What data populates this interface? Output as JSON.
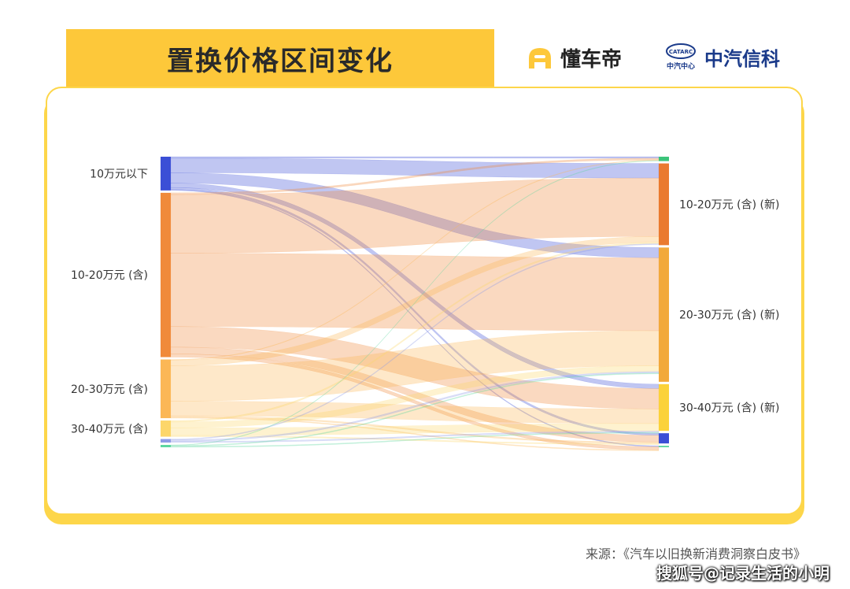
{
  "title": "置换价格区间变化",
  "logos": {
    "dongchedi": "懂车帝",
    "catarc": "中汽信科",
    "catarc_sub": "中汽中心",
    "catarc_badge": "CATARC"
  },
  "source": "来源：《汽车以旧换新消费洞察白皮书》",
  "watermark": "搜狐号@记录生活的小明",
  "chart_data": {
    "type": "sankey",
    "title": "置换价格区间变化",
    "left_nodes": [
      {
        "id": "L1",
        "label": "10万元以下",
        "color": "#3b4fd6",
        "value": 11.5
      },
      {
        "id": "L2",
        "label": "10-20万元 (含)",
        "color": "#f08a3a",
        "value": 56
      },
      {
        "id": "L3",
        "label": "20-30万元 (含)",
        "color": "#fbb756",
        "value": 20
      },
      {
        "id": "L4",
        "label": "30-40万元 (含)",
        "color": "#fcd66a",
        "value": 5.5
      },
      {
        "id": "L5",
        "label": "",
        "color": "#8e9be6",
        "value": 1.2
      },
      {
        "id": "L6",
        "label": "",
        "color": "#5cd6a0",
        "value": 0.8
      }
    ],
    "right_nodes": [
      {
        "id": "R0",
        "label": "",
        "color": "#3cc47a",
        "value": 1.5
      },
      {
        "id": "R1",
        "label": "10-20万元 (含) (新)",
        "color": "#ea7a2f",
        "value": 28
      },
      {
        "id": "R2",
        "label": "20-30万元 (含) (新)",
        "color": "#f2a93b",
        "value": 46
      },
      {
        "id": "R3",
        "label": "30-40万元 (含) (新)",
        "color": "#fbd23a",
        "value": 16
      },
      {
        "id": "R4",
        "label": "",
        "color": "#3b4fd6",
        "value": 3.5
      },
      {
        "id": "R5",
        "label": "",
        "color": "#5cd6a0",
        "value": 0.5
      }
    ],
    "links": [
      {
        "source": "L1",
        "target": "R0",
        "value": 0.5
      },
      {
        "source": "L1",
        "target": "R1",
        "value": 5
      },
      {
        "source": "L1",
        "target": "R2",
        "value": 3.5
      },
      {
        "source": "L1",
        "target": "R3",
        "value": 1.5
      },
      {
        "source": "L1",
        "target": "R4",
        "value": 0.7
      },
      {
        "source": "L1",
        "target": "R5",
        "value": 0.3
      },
      {
        "source": "L2",
        "target": "R0",
        "value": 0.6
      },
      {
        "source": "L2",
        "target": "R1",
        "value": 20
      },
      {
        "source": "L2",
        "target": "R2",
        "value": 25
      },
      {
        "source": "L2",
        "target": "R3",
        "value": 7
      },
      {
        "source": "L2",
        "target": "R4",
        "value": 2.3
      },
      {
        "source": "L2",
        "target": "R5",
        "value": 1.1
      },
      {
        "source": "L3",
        "target": "R0",
        "value": 0.2
      },
      {
        "source": "L3",
        "target": "R1",
        "value": 2
      },
      {
        "source": "L3",
        "target": "R2",
        "value": 12
      },
      {
        "source": "L3",
        "target": "R3",
        "value": 5
      },
      {
        "source": "L3",
        "target": "R4",
        "value": 0.5
      },
      {
        "source": "L3",
        "target": "R5",
        "value": 0.3
      },
      {
        "source": "L4",
        "target": "R1",
        "value": 0.5
      },
      {
        "source": "L4",
        "target": "R2",
        "value": 2
      },
      {
        "source": "L4",
        "target": "R3",
        "value": 2.6
      },
      {
        "source": "L4",
        "target": "R4",
        "value": 0.4
      },
      {
        "source": "L5",
        "target": "R1",
        "value": 0.3
      },
      {
        "source": "L5",
        "target": "R2",
        "value": 0.5
      },
      {
        "source": "L5",
        "target": "R3",
        "value": 0.4
      },
      {
        "source": "L6",
        "target": "R0",
        "value": 0.2
      },
      {
        "source": "L6",
        "target": "R2",
        "value": 0.3
      },
      {
        "source": "L6",
        "target": "R3",
        "value": 0.3
      }
    ]
  }
}
